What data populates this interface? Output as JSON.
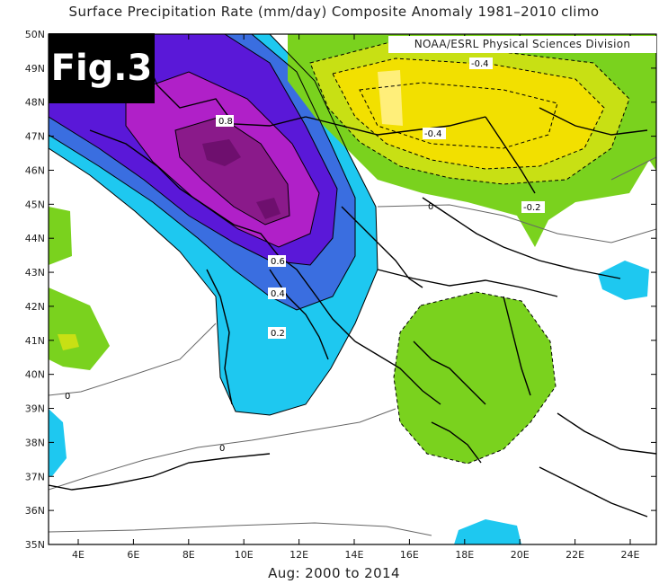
{
  "title": "Surface Precipitation Rate (mm/day) Composite Anomaly 1981–2010 climo",
  "subtitle": "Aug: 2000 to 2014",
  "fig_label": "Fig.3",
  "credit": "NOAA/ESRL Physical Sciences Division",
  "lat_ticks": [
    "50N",
    "49N",
    "48N",
    "47N",
    "46N",
    "45N",
    "44N",
    "43N",
    "42N",
    "41N",
    "40N",
    "39N",
    "38N",
    "37N",
    "36N",
    "35N"
  ],
  "lon_ticks": [
    "4E",
    "6E",
    "8E",
    "10E",
    "12E",
    "14E",
    "16E",
    "18E",
    "20E",
    "22E",
    "24E"
  ],
  "contour_labels": [
    "0.8",
    "0.6",
    "0.4",
    "0.2",
    "-0.4",
    "-0.4",
    "-0.2",
    "0",
    "0",
    "0"
  ],
  "colors": {
    "pos_02": "#1ec8f0",
    "pos_04": "#3a6ee0",
    "pos_06": "#5a18d8",
    "pos_08": "#b020c8",
    "pos_10": "#8a1a8a",
    "neg_02": "#7ad21e",
    "neg_04": "#f2e000",
    "neg_03": "#c8e014"
  }
}
